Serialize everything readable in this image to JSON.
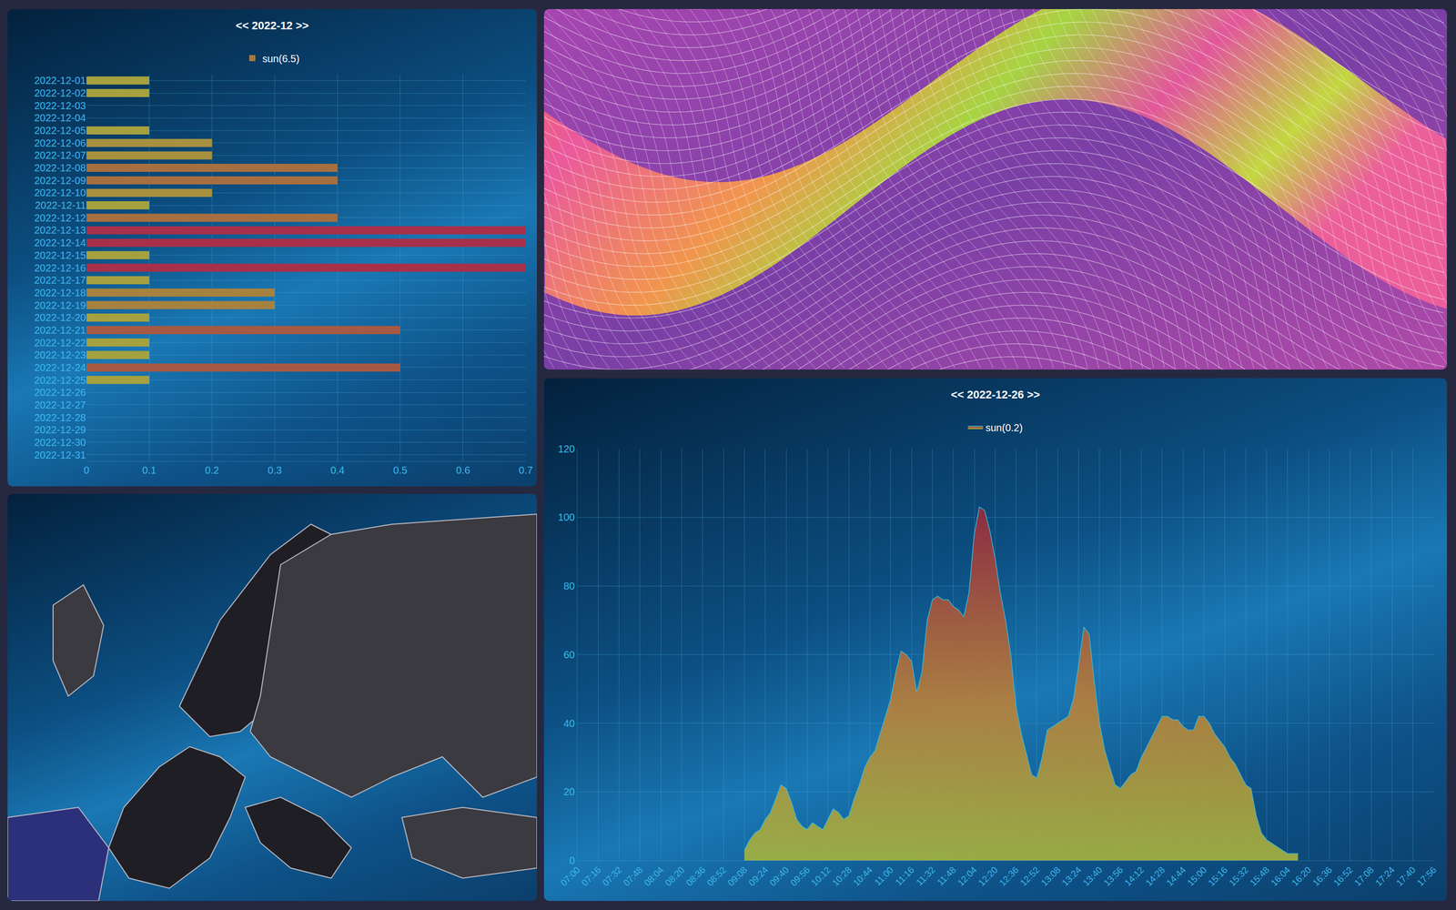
{
  "chart_data": [
    {
      "type": "bar",
      "title": "<< 2022-12 >>",
      "orientation": "horizontal",
      "categories": [
        "2022-12-01",
        "2022-12-02",
        "2022-12-03",
        "2022-12-04",
        "2022-12-05",
        "2022-12-06",
        "2022-12-07",
        "2022-12-08",
        "2022-12-09",
        "2022-12-10",
        "2022-12-11",
        "2022-12-12",
        "2022-12-13",
        "2022-12-14",
        "2022-12-15",
        "2022-12-16",
        "2022-12-17",
        "2022-12-18",
        "2022-12-19",
        "2022-12-20",
        "2022-12-21",
        "2022-12-22",
        "2022-12-23",
        "2022-12-24",
        "2022-12-25",
        "2022-12-26",
        "2022-12-27",
        "2022-12-28",
        "2022-12-29",
        "2022-12-30",
        "2022-12-31"
      ],
      "series": [
        {
          "name": "sun(6.5)",
          "color": "#a8304a",
          "values": [
            0.1,
            0.1,
            0,
            0,
            0.1,
            0.2,
            0.2,
            0.4,
            0.4,
            0.2,
            0.1,
            0.4,
            0.7,
            0.7,
            0.1,
            0.7,
            0.1,
            0.3,
            0.3,
            0.1,
            0.5,
            0.1,
            0.1,
            0.5,
            0.1,
            null,
            null,
            null,
            null,
            null,
            null
          ]
        }
      ],
      "xlim": [
        0,
        0.7
      ],
      "xticks": [
        0,
        0.1,
        0.2,
        0.3,
        0.4,
        0.5,
        0.6,
        0.7
      ],
      "grid": true,
      "legend": "top"
    },
    {
      "type": "area",
      "title": "<< 2022-12-26 >>",
      "categories": [
        "07:00",
        null,
        null,
        null,
        "07:16",
        null,
        null,
        null,
        "07:32",
        null,
        null,
        null,
        "07:48",
        null,
        null,
        null,
        "08:04",
        null,
        null,
        null,
        "08:20",
        null,
        null,
        null,
        "08:36",
        null,
        null,
        null,
        "08:52",
        null,
        null,
        null,
        "09:08",
        null,
        null,
        null,
        "09:24",
        null,
        null,
        null,
        "09:40",
        null,
        null,
        null,
        "09:56",
        null,
        null,
        null,
        "10:12",
        null,
        null,
        null,
        "10:28",
        null,
        null,
        null,
        "10:44",
        null,
        null,
        null,
        "11:00",
        null,
        null,
        null,
        "11:16",
        null,
        null,
        null,
        "11:32",
        null,
        null,
        null,
        "11:48",
        null,
        null,
        null,
        "12:04",
        null,
        null,
        null,
        "12:20",
        null,
        null,
        null,
        "12:36",
        null,
        null,
        null,
        "12:52",
        null,
        null,
        null,
        "13:08",
        null,
        null,
        null,
        "13:24",
        null,
        null,
        null,
        "13:40",
        null,
        null,
        null,
        "13:56",
        null,
        null,
        null,
        "14:12",
        null,
        null,
        null,
        "14:28",
        null,
        null,
        null,
        "14:44",
        null,
        null,
        null,
        "15:00",
        null,
        null,
        null,
        "15:16",
        null,
        null,
        null,
        "15:32",
        null,
        null,
        null,
        "15:48",
        null,
        null,
        null,
        "16:04",
        null,
        null,
        null,
        "16:20",
        null,
        null,
        null,
        "16:36",
        null,
        null,
        null,
        "16:52",
        null,
        null,
        null,
        "17:08",
        null,
        null,
        null,
        "17:24",
        null,
        null,
        null,
        "17:40",
        null,
        null,
        null,
        "17:56"
      ],
      "series": [
        {
          "name": "sun(0.2)",
          "color": "#8b2c44",
          "values": [
            null,
            null,
            null,
            null,
            null,
            null,
            null,
            null,
            null,
            null,
            null,
            null,
            null,
            null,
            null,
            null,
            null,
            null,
            null,
            null,
            null,
            null,
            null,
            null,
            null,
            null,
            null,
            null,
            null,
            null,
            null,
            null,
            3,
            6,
            8,
            9,
            12,
            14,
            18,
            22,
            21,
            17,
            12,
            10,
            9,
            11,
            10,
            9,
            12,
            15,
            14,
            12,
            13,
            18,
            22,
            27,
            30,
            32,
            37,
            42,
            47,
            55,
            61,
            60,
            58,
            49,
            55,
            70,
            76,
            77,
            76,
            76,
            74,
            73,
            71,
            78,
            95,
            103,
            102,
            96,
            88,
            78,
            70,
            60,
            45,
            37,
            31,
            25,
            24,
            30,
            38,
            39,
            40,
            41,
            42,
            47,
            57,
            68,
            66,
            52,
            40,
            32,
            27,
            22,
            21,
            23,
            25,
            26,
            30,
            33,
            36,
            39,
            42,
            42,
            41,
            41,
            39,
            38,
            38,
            42,
            42,
            40,
            37,
            35,
            33,
            30,
            28,
            25,
            22,
            21,
            13,
            8,
            6,
            5,
            4,
            3,
            2,
            2,
            2,
            null,
            null,
            null,
            null,
            null,
            null,
            null,
            null,
            null,
            null,
            null,
            null,
            null,
            null,
            null,
            null,
            null,
            null,
            null,
            null,
            null,
            null,
            null,
            null,
            null,
            null
          ]
        }
      ],
      "ylim": [
        0,
        120
      ],
      "yticks": [
        0,
        20,
        40,
        60,
        80,
        100,
        120
      ],
      "grid": true,
      "legend": "top"
    }
  ]
}
